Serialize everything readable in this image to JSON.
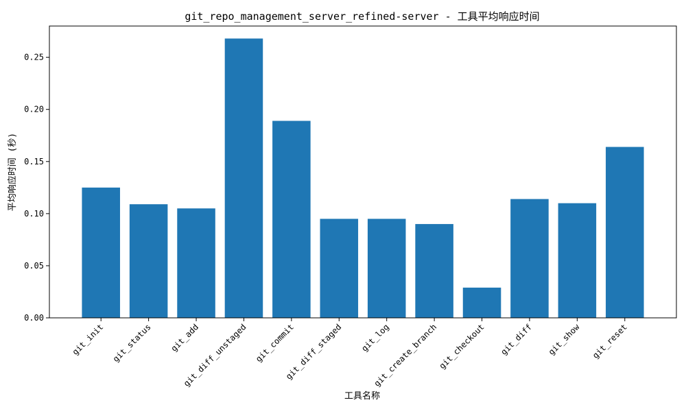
{
  "chart_data": {
    "type": "bar",
    "title": "git_repo_management_server_refined-server - 工具平均响应时间",
    "xlabel": "工具名称",
    "ylabel": "平均响应时间 (秒)",
    "categories": [
      "git_init",
      "git_status",
      "git_add",
      "git_diff_unstaged",
      "git_commit",
      "git_diff_staged",
      "git_log",
      "git_create_branch",
      "git_checkout",
      "git_diff",
      "git_show",
      "git_reset"
    ],
    "values": [
      0.125,
      0.109,
      0.105,
      0.268,
      0.189,
      0.095,
      0.095,
      0.09,
      0.029,
      0.114,
      0.11,
      0.164
    ],
    "ylim": [
      0,
      0.28
    ],
    "yticks": [
      0.0,
      0.05,
      0.1,
      0.15,
      0.2,
      0.25
    ],
    "ytick_labels": [
      "0.00",
      "0.05",
      "0.10",
      "0.15",
      "0.20",
      "0.25"
    ],
    "bar_color": "#1f77b4",
    "grid": false,
    "legend": "none"
  }
}
